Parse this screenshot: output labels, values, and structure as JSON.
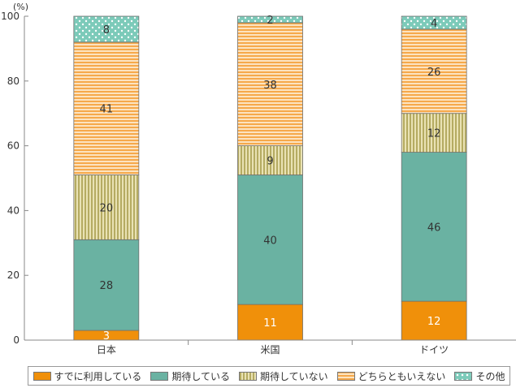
{
  "chart_data": {
    "type": "bar",
    "stacked": true,
    "unit_label": "(%)",
    "categories": [
      "日本",
      "米国",
      "ドイツ"
    ],
    "ylim": [
      0,
      100
    ],
    "yticks": [
      0,
      20,
      40,
      60,
      80,
      100
    ],
    "grid": false,
    "legend_position": "bottom",
    "series": [
      {
        "name": "すでに利用している",
        "values": [
          3,
          11,
          12
        ],
        "color": "#f0900a",
        "pattern": "solid"
      },
      {
        "name": "期待している",
        "values": [
          28,
          40,
          46
        ],
        "color": "#6ab2a2",
        "pattern": "solid"
      },
      {
        "name": "期待していない",
        "values": [
          20,
          9,
          12
        ],
        "color": "#c8c18a",
        "pattern": "vertical-stripes"
      },
      {
        "name": "どちらともいえない",
        "values": [
          41,
          38,
          26
        ],
        "color": "#f7b766",
        "pattern": "horizontal-stripes"
      },
      {
        "name": "その他",
        "values": [
          8,
          2,
          4
        ],
        "color": "#8fcfc0",
        "pattern": "dots"
      }
    ]
  }
}
